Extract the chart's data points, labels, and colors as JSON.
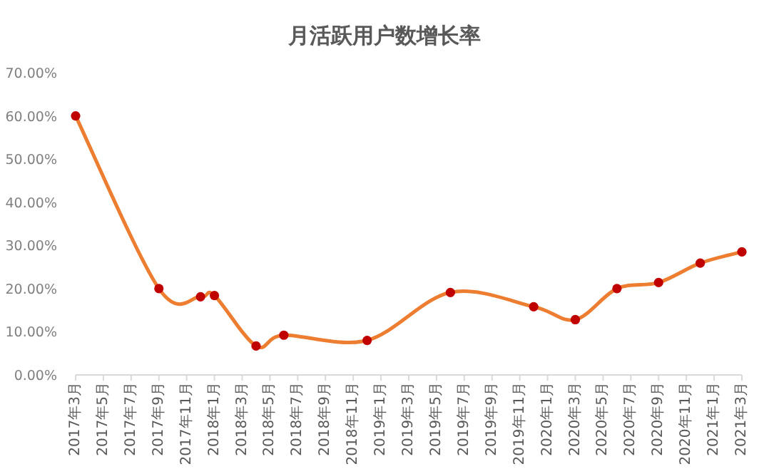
{
  "chart_data": {
    "type": "line",
    "title": "月活跃用户数增长率",
    "x": [
      "2017-03",
      "2017-09",
      "2017-12",
      "2018-01",
      "2018-04",
      "2018-06",
      "2018-12",
      "2019-06",
      "2019-12",
      "2020-03",
      "2020-06",
      "2020-09",
      "2020-12",
      "2021-03"
    ],
    "series": [
      {
        "type": "line",
        "color": "#ed7d31",
        "values": [
          60.0,
          20.0,
          18.1,
          18.4,
          6.7,
          9.2,
          8.0,
          19.1,
          15.8,
          12.8,
          20.0,
          21.4,
          25.9,
          28.5
        ]
      },
      {
        "type": "scatter",
        "color": "#c00000",
        "marker": "circle",
        "values": [
          60.0,
          20.0,
          18.1,
          18.4,
          6.7,
          9.2,
          8.0,
          19.1,
          15.8,
          12.8,
          20.0,
          21.4,
          25.9,
          28.5
        ]
      }
    ],
    "xlim": [
      "2017-03",
      "2021-03"
    ],
    "xticks": [
      {
        "value": "2017-03",
        "label": "2017年3月"
      },
      {
        "value": "2017-05",
        "label": "2017年5月"
      },
      {
        "value": "2017-07",
        "label": "2017年7月"
      },
      {
        "value": "2017-09",
        "label": "2017年9月"
      },
      {
        "value": "2017-11",
        "label": "2017年11月"
      },
      {
        "value": "2018-01",
        "label": "2018年1月"
      },
      {
        "value": "2018-03",
        "label": "2018年3月"
      },
      {
        "value": "2018-05",
        "label": "2018年5月"
      },
      {
        "value": "2018-07",
        "label": "2018年7月"
      },
      {
        "value": "2018-09",
        "label": "2018年9月"
      },
      {
        "value": "2018-11",
        "label": "2018年11月"
      },
      {
        "value": "2019-01",
        "label": "2019年1月"
      },
      {
        "value": "2019-03",
        "label": "2019年3月"
      },
      {
        "value": "2019-05",
        "label": "2019年5月"
      },
      {
        "value": "2019-07",
        "label": "2019年7月"
      },
      {
        "value": "2019-09",
        "label": "2019年9月"
      },
      {
        "value": "2019-11",
        "label": "2019年11月"
      },
      {
        "value": "2020-01",
        "label": "2020年1月"
      },
      {
        "value": "2020-03",
        "label": "2020年3月"
      },
      {
        "value": "2020-05",
        "label": "2020年5月"
      },
      {
        "value": "2020-07",
        "label": "2020年7月"
      },
      {
        "value": "2020-09",
        "label": "2020年9月"
      },
      {
        "value": "2020-11",
        "label": "2020年11月"
      },
      {
        "value": "2021-01",
        "label": "2021年1月"
      },
      {
        "value": "2021-03",
        "label": "2021年3月"
      }
    ],
    "ylim": [
      0,
      70
    ],
    "yticks": [
      {
        "value": 0,
        "label": "0.00%"
      },
      {
        "value": 10,
        "label": "10.00%"
      },
      {
        "value": 20,
        "label": "20.00%"
      },
      {
        "value": 30,
        "label": "30.00%"
      },
      {
        "value": 40,
        "label": "40.00%"
      },
      {
        "value": 50,
        "label": "50.00%"
      },
      {
        "value": 60,
        "label": "60.00%"
      },
      {
        "value": 70,
        "label": "70.00%"
      }
    ],
    "line_style": "solid"
  }
}
